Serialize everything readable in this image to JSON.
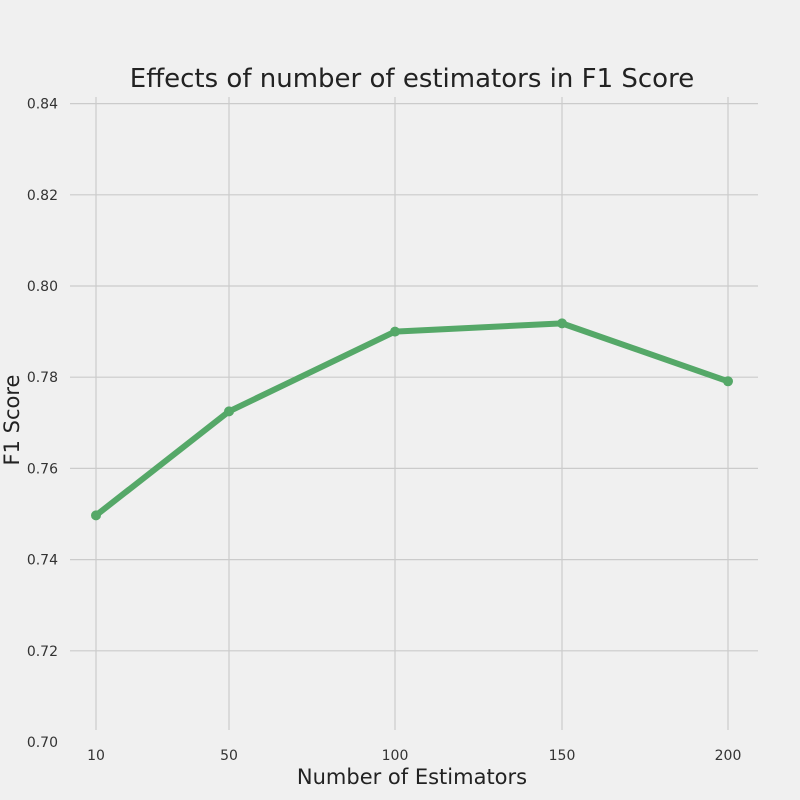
{
  "chart_data": {
    "type": "line",
    "title": "Effects of number of estimators in F1 Score",
    "xlabel": "Number of Estimators",
    "ylabel": "F1 Score",
    "categories": [
      "10",
      "50",
      "100",
      "150",
      "200"
    ],
    "x": [
      10,
      50,
      100,
      150,
      200
    ],
    "series": [
      {
        "values": [
          0.7497,
          0.7725,
          0.79,
          0.7918,
          0.7791
        ],
        "color": "#55a868"
      }
    ],
    "ylim": [
      0.7,
      0.84
    ],
    "yticks": [
      "0.70",
      "0.72",
      "0.74",
      "0.76",
      "0.78",
      "0.80",
      "0.82",
      "0.84"
    ],
    "xticks": [
      "10",
      "50",
      "100",
      "150",
      "200"
    ],
    "grid": true,
    "legend": "none"
  },
  "colors": {
    "background": "#f0f0f0",
    "grid": "#cbcbcb",
    "line": "#55a868"
  }
}
